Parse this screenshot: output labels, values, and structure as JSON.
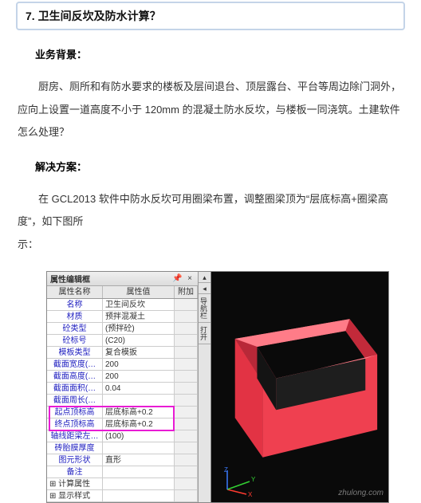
{
  "title": "7. 卫生间反坎及防水计算？",
  "headings": {
    "context": "业务背景：",
    "solution": "解决方案："
  },
  "paragraphs": {
    "context": "厨房、厕所和有防水要求的楼板及层间退台、顶层露台、平台等周边除门洞外，应向上设置一道高度不小于 120mm 的混凝土防水反坎，与楼板一同浇筑。土建软件怎么处理？",
    "solution_a": "在 GCL2013 软件中防水反坎可用圈梁布置，调整圈梁顶为“层底标高+圈梁高度”，如下图所",
    "solution_b": "示："
  },
  "panel": {
    "title": "属性编辑框",
    "header": {
      "name": "属性名称",
      "value": "属性值",
      "add": "附加"
    },
    "rows": [
      {
        "name": "名称",
        "value": "卫生间反坎"
      },
      {
        "name": "材质",
        "value": "预拌混凝土"
      },
      {
        "name": "砼类型",
        "value": "(预拌砼)"
      },
      {
        "name": "砼标号",
        "value": "(C20)"
      },
      {
        "name": "模板类型",
        "value": "复合模扳"
      },
      {
        "name": "截面宽度(…",
        "value": "200"
      },
      {
        "name": "截面高度(…",
        "value": "200"
      },
      {
        "name": "截面面积(…",
        "value": "0.04"
      },
      {
        "name": "截面周长(…",
        "value": ""
      },
      {
        "name": "起点顶标高",
        "value": "层底标高+0.2"
      },
      {
        "name": "终点顶标高",
        "value": "层底标高+0.2"
      },
      {
        "name": "轴线距梁左…",
        "value": "(100)"
      },
      {
        "name": "砖胎膜厚度",
        "value": ""
      },
      {
        "name": "图元形状",
        "value": "直形"
      },
      {
        "name": "备注",
        "value": ""
      },
      {
        "name": "计算属性",
        "value": "",
        "expand": true
      },
      {
        "name": "显示样式",
        "value": "",
        "expand": true
      }
    ],
    "highlight": {
      "startRow": 9,
      "endRow": 10
    }
  },
  "tabs": {
    "t1": "导航栏",
    "t2": "打开"
  },
  "colors": {
    "cube_outer": "#ec3b4a",
    "cube_inner_dark": "#0c0c0c",
    "cube_top_light": "#ff6b78",
    "cube_top_shadow": "#b82633"
  },
  "watermark": "zhulong.com"
}
